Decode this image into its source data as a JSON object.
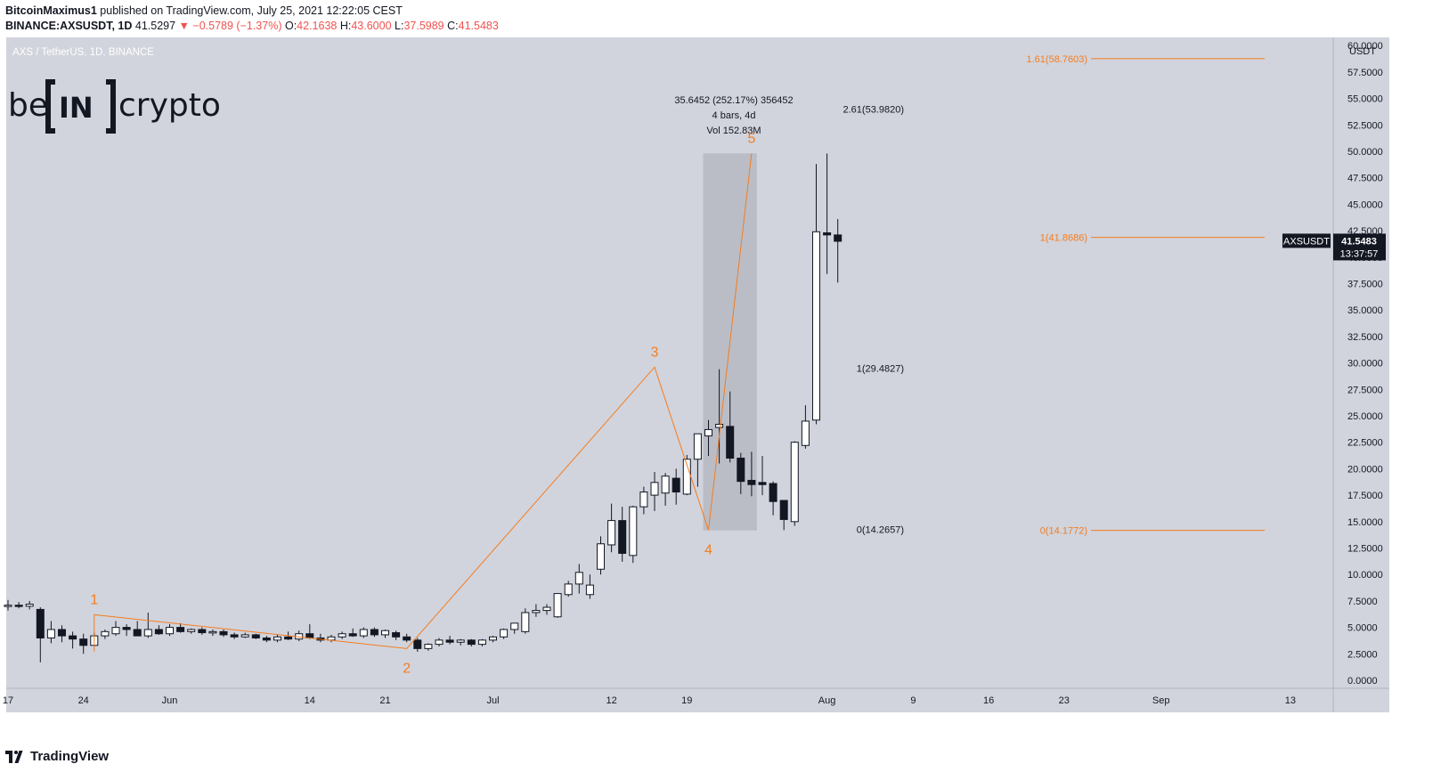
{
  "header": {
    "author": "BitcoinMaximus1",
    "published": "published on TradingView.com, July 25, 2021 12:22:05 CEST",
    "symbol": "BINANCE:AXSUSDT, 1D",
    "last": "41.5297",
    "change": "−0.5789 (−1.37%)",
    "o_label": "O:",
    "o": "42.1638",
    "h_label": "H:",
    "h": "43.6000",
    "l_label": "L:",
    "l": "37.5989",
    "c_label": "C:",
    "c": "41.5483"
  },
  "pane_title": "AXS / TetherUS, 1D, BINANCE",
  "logo": {
    "left": "be",
    "mid": "IN",
    "right": "crypto"
  },
  "footer": {
    "brand": "TradingView"
  },
  "colors": {
    "background": "#d1d4dc",
    "orange": "#f57c20",
    "up": "#ffffff",
    "down": "#131722"
  },
  "chart_data": {
    "type": "candlestick",
    "unit": "USDT",
    "ylim": [
      0,
      62
    ],
    "y_ticks": [
      "0.0000",
      "2.5000",
      "5.0000",
      "7.5000",
      "10.0000",
      "12.5000",
      "15.0000",
      "17.5000",
      "20.0000",
      "22.5000",
      "25.0000",
      "27.5000",
      "30.0000",
      "32.5000",
      "35.0000",
      "37.5000",
      "40.0000",
      "42.5000",
      "45.0000",
      "47.5000",
      "50.0000",
      "52.5000",
      "55.0000",
      "57.5000",
      "60.0000"
    ],
    "x_ticks": [
      {
        "label": "17",
        "day": 0
      },
      {
        "label": "24",
        "day": 7
      },
      {
        "label": "Jun",
        "day": 15
      },
      {
        "label": "14",
        "day": 28
      },
      {
        "label": "21",
        "day": 35
      },
      {
        "label": "Jul",
        "day": 45
      },
      {
        "label": "12",
        "day": 56
      },
      {
        "label": "19",
        "day": 63
      },
      {
        "label": "Aug",
        "day": 76
      },
      {
        "label": "9",
        "day": 84
      },
      {
        "label": "16",
        "day": 91
      },
      {
        "label": "23",
        "day": 98
      },
      {
        "label": "Sep",
        "day": 107
      },
      {
        "label": "13",
        "day": 119
      }
    ],
    "candles": [
      [
        7.0,
        7.6,
        6.6,
        7.1
      ],
      [
        7.1,
        7.4,
        6.8,
        7.0
      ],
      [
        7.0,
        7.5,
        6.7,
        7.2
      ],
      [
        6.7,
        6.9,
        1.7,
        4.0
      ],
      [
        4.0,
        5.6,
        3.5,
        4.8
      ],
      [
        4.8,
        5.2,
        3.6,
        4.2
      ],
      [
        4.2,
        4.6,
        3.0,
        3.9
      ],
      [
        3.9,
        4.4,
        2.5,
        3.3
      ],
      [
        3.3,
        4.5,
        3.2,
        4.2
      ],
      [
        4.2,
        4.8,
        3.9,
        4.6
      ],
      [
        4.4,
        5.6,
        4.2,
        5.0
      ],
      [
        5.0,
        5.3,
        4.2,
        4.8
      ],
      [
        4.8,
        5.6,
        4.3,
        4.2
      ],
      [
        4.2,
        6.4,
        4.0,
        4.8
      ],
      [
        4.8,
        5.2,
        4.3,
        4.4
      ],
      [
        4.4,
        5.3,
        4.2,
        5.0
      ],
      [
        5.0,
        5.4,
        4.5,
        4.6
      ],
      [
        4.6,
        4.9,
        4.4,
        4.8
      ],
      [
        4.8,
        5.0,
        4.3,
        4.5
      ],
      [
        4.5,
        4.8,
        4.2,
        4.6
      ],
      [
        4.6,
        4.8,
        4.1,
        4.3
      ],
      [
        4.3,
        4.5,
        3.9,
        4.1
      ],
      [
        4.1,
        4.5,
        4.0,
        4.3
      ],
      [
        4.3,
        4.4,
        3.9,
        4.0
      ],
      [
        4.0,
        4.2,
        3.6,
        3.8
      ],
      [
        3.8,
        4.3,
        3.6,
        4.1
      ],
      [
        4.1,
        4.6,
        3.8,
        3.9
      ],
      [
        3.9,
        4.7,
        3.7,
        4.4
      ],
      [
        4.4,
        5.3,
        3.9,
        4.0
      ],
      [
        4.0,
        4.4,
        3.6,
        3.8
      ],
      [
        3.8,
        4.3,
        3.6,
        4.1
      ],
      [
        4.1,
        4.6,
        3.9,
        4.4
      ],
      [
        4.4,
        4.9,
        4.1,
        4.2
      ],
      [
        4.2,
        5.0,
        4.0,
        4.8
      ],
      [
        4.8,
        5.0,
        4.1,
        4.3
      ],
      [
        4.3,
        4.8,
        4.0,
        4.7
      ],
      [
        4.5,
        4.7,
        3.8,
        4.1
      ],
      [
        4.1,
        4.4,
        3.6,
        3.8
      ],
      [
        3.8,
        4.0,
        2.7,
        3.0
      ],
      [
        3.0,
        3.5,
        2.8,
        3.4
      ],
      [
        3.4,
        4.0,
        3.2,
        3.8
      ],
      [
        3.8,
        4.2,
        3.4,
        3.6
      ],
      [
        3.6,
        3.9,
        3.3,
        3.8
      ],
      [
        3.8,
        3.9,
        3.2,
        3.4
      ],
      [
        3.4,
        3.9,
        3.2,
        3.8
      ],
      [
        3.8,
        4.2,
        3.6,
        4.1
      ],
      [
        4.1,
        4.9,
        3.9,
        4.8
      ],
      [
        4.8,
        5.4,
        4.4,
        5.4
      ],
      [
        4.6,
        6.8,
        4.4,
        6.4
      ],
      [
        6.4,
        7.2,
        6.0,
        6.6
      ],
      [
        6.6,
        7.2,
        6.2,
        6.9
      ],
      [
        6.0,
        8.2,
        5.9,
        8.2
      ],
      [
        8.1,
        9.4,
        7.9,
        9.1
      ],
      [
        9.1,
        11.0,
        8.2,
        10.2
      ],
      [
        8.1,
        10.0,
        7.7,
        9.0
      ],
      [
        10.5,
        13.6,
        10.0,
        12.9
      ],
      [
        12.8,
        16.7,
        12.1,
        15.1
      ],
      [
        15.1,
        16.4,
        11.2,
        12.0
      ],
      [
        11.8,
        16.5,
        11.1,
        16.4
      ],
      [
        16.4,
        18.3,
        15.7,
        17.8
      ],
      [
        17.5,
        19.7,
        16.0,
        18.7
      ],
      [
        17.7,
        19.6,
        16.5,
        19.3
      ],
      [
        19.1,
        20.0,
        16.6,
        17.8
      ],
      [
        17.6,
        21.3,
        17.5,
        20.9
      ],
      [
        20.9,
        23.2,
        18.3,
        23.3
      ],
      [
        23.1,
        24.6,
        21.2,
        23.7
      ],
      [
        23.9,
        29.4,
        20.5,
        24.2
      ],
      [
        24.0,
        27.3,
        20.6,
        21.0
      ],
      [
        21.0,
        21.5,
        17.6,
        18.8
      ],
      [
        18.9,
        21.6,
        17.4,
        18.5
      ],
      [
        18.7,
        21.2,
        17.5,
        18.5
      ],
      [
        18.6,
        18.8,
        15.6,
        16.9
      ],
      [
        17.0,
        17.0,
        14.2,
        15.2
      ],
      [
        15.0,
        22.6,
        14.6,
        22.5
      ],
      [
        22.2,
        26.0,
        21.9,
        24.5
      ],
      [
        24.6,
        48.8,
        24.2,
        42.4
      ],
      [
        42.3,
        49.8,
        38.4,
        42.1
      ],
      [
        42.1,
        43.6,
        37.6,
        41.5
      ]
    ],
    "wave_points": [
      {
        "label": "1",
        "day": 8,
        "value": 6.2
      },
      {
        "label": "2",
        "day": 37,
        "value": 3.0
      },
      {
        "label": "3",
        "day": 60,
        "value": 29.6
      },
      {
        "label": "4",
        "day": 65,
        "value": 14.2
      },
      {
        "label": "5",
        "day": 69,
        "value": 49.8
      }
    ],
    "wave_start": {
      "day": 8,
      "value": 2.7
    },
    "measure_box": {
      "day_from": 65,
      "day_to": 69,
      "y_from": 14.17,
      "y_to": 49.82
    },
    "measure_text": [
      "35.6452 (252.17%) 356452",
      "4 bars, 4d",
      "Vol 152.83M"
    ],
    "fib_grey": [
      {
        "label": "2.61(53.9820)",
        "value": 53.982
      },
      {
        "label": "1(29.4827)",
        "value": 29.4827
      },
      {
        "label": "0(14.2657)",
        "value": 14.2657
      }
    ],
    "fib_orange": [
      {
        "label": "1.61(58.7603)",
        "value": 58.7603
      },
      {
        "label": "1(41.8686)",
        "value": 41.8686
      },
      {
        "label": "0(14.1772)",
        "value": 14.1772
      }
    ],
    "price_tag": {
      "symbol": "AXSUSDT",
      "price": "41.5483",
      "countdown": "13:37:57",
      "value": 41.5483
    }
  }
}
